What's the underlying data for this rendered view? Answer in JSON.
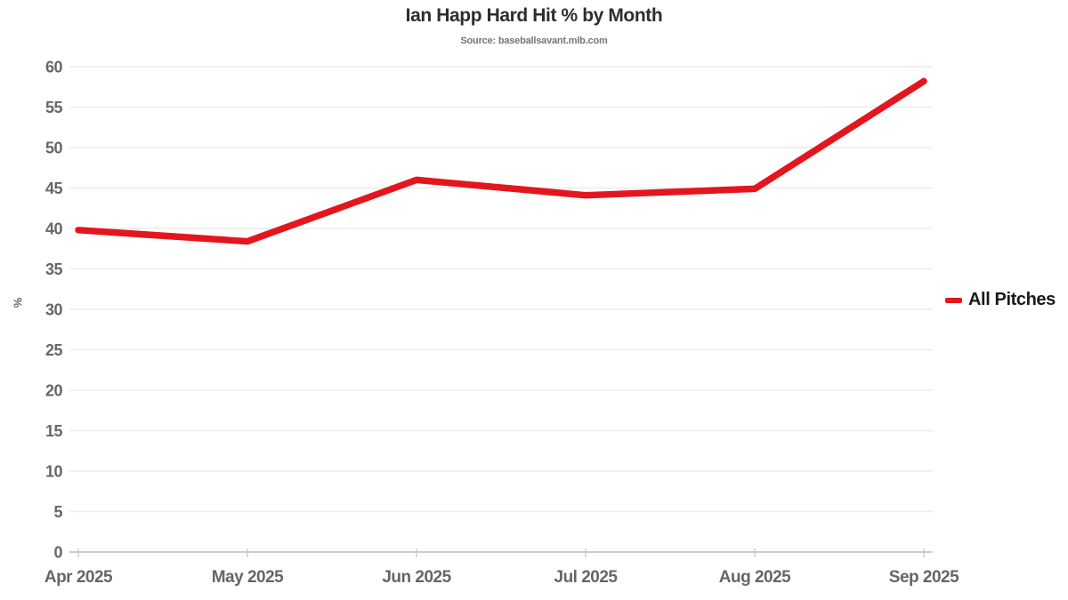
{
  "chart_data": {
    "type": "line",
    "title": "Ian Happ Hard Hit % by Month",
    "subtitle": "Source: baseballsavant.mlb.com",
    "xlabel": "",
    "ylabel": "%",
    "categories": [
      "Apr 2025",
      "May 2025",
      "Jun 2025",
      "Jul 2025",
      "Aug 2025",
      "Sep 2025"
    ],
    "series": [
      {
        "name": "All Pitches",
        "values": [
          39.8,
          38.4,
          46.0,
          44.1,
          44.9,
          58.2
        ]
      }
    ],
    "ylim": [
      0,
      60
    ],
    "yticks": [
      0,
      5,
      10,
      15,
      20,
      25,
      30,
      35,
      40,
      45,
      50,
      55,
      60
    ],
    "grid": "horizontal-only",
    "legend_position": "right-middle",
    "colors": {
      "line": "#e4161d",
      "title_text": "#2d2d2d",
      "subtitle_text": "#757575",
      "axis_text": "#666666",
      "gridline": "#ececec",
      "axis_line": "#cccccc",
      "legend_text": "#1a1a1a"
    }
  }
}
